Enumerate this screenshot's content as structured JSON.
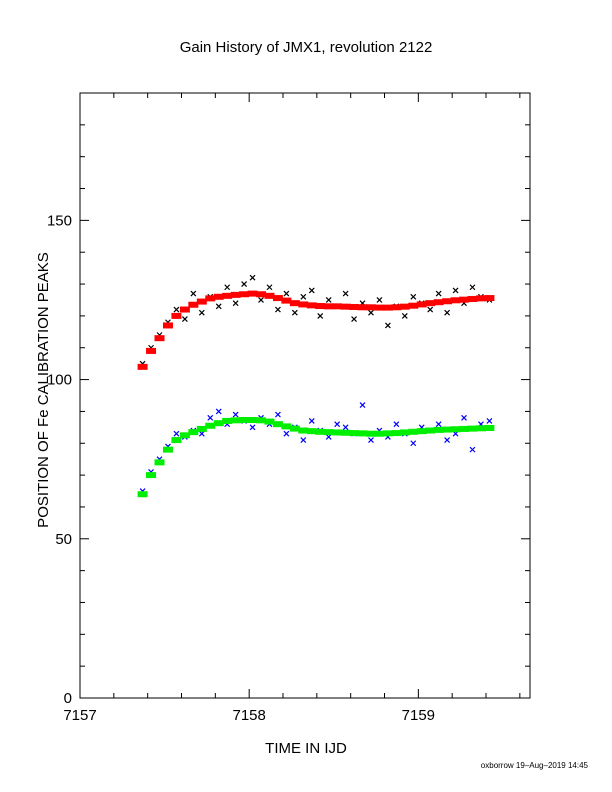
{
  "chart_data": {
    "type": "scatter",
    "title": "Gain History of JMX1, revolution 2122",
    "x_label": "TIME IN IJD",
    "y_label": "POSITION OF Fe CALIBRATION PEAKS",
    "footer": "oxborrow 19–Aug–2019 14:45",
    "xlim": [
      7157,
      7159.66
    ],
    "ylim": [
      0,
      190
    ],
    "xticks": [
      7157,
      7158,
      7159
    ],
    "yticks": [
      0,
      50,
      100,
      150
    ],
    "xminor_ticks": [
      7157.2,
      7157.4,
      7157.6,
      7157.8,
      7158.2,
      7158.4,
      7158.6,
      7158.8,
      7159.2,
      7159.4,
      7159.6
    ],
    "yminor_ticks": [
      10,
      20,
      30,
      40,
      60,
      70,
      80,
      90,
      110,
      120,
      130,
      140,
      160,
      170,
      180
    ],
    "x": [
      7157.37,
      7157.42,
      7157.47,
      7157.52,
      7157.57,
      7157.62,
      7157.67,
      7157.72,
      7157.77,
      7157.82,
      7157.87,
      7157.92,
      7157.97,
      7158.02,
      7158.07,
      7158.12,
      7158.17,
      7158.22,
      7158.27,
      7158.32,
      7158.37,
      7158.42,
      7158.47,
      7158.52,
      7158.57,
      7158.62,
      7158.67,
      7158.72,
      7158.77,
      7158.82,
      7158.87,
      7158.92,
      7158.97,
      7159.02,
      7159.07,
      7159.12,
      7159.17,
      7159.22,
      7159.27,
      7159.32,
      7159.37,
      7159.42
    ],
    "series": [
      {
        "color": "#000000",
        "marker": "x",
        "values": [
          105,
          110,
          114,
          118,
          122,
          119,
          127,
          121,
          126,
          123,
          129,
          124,
          130,
          132,
          125,
          129,
          122,
          127,
          121,
          126,
          128,
          120,
          125,
          123,
          127,
          119,
          124,
          121,
          125,
          117,
          123,
          120,
          126,
          124,
          122,
          127,
          121,
          128,
          124,
          129,
          126,
          125
        ]
      },
      {
        "color": "#ff0000",
        "marker": "square",
        "values": [
          104,
          109,
          113,
          117,
          120,
          122,
          123.5,
          124.5,
          125.5,
          126,
          126.3,
          126.6,
          126.8,
          127,
          126.8,
          126.3,
          125.6,
          124.8,
          124,
          123.6,
          123.3,
          123.1,
          123,
          123,
          122.9,
          122.8,
          122.7,
          122.7,
          122.6,
          122.6,
          122.7,
          122.9,
          123.2,
          123.6,
          124,
          124.3,
          124.6,
          124.9,
          125.1,
          125.3,
          125.5,
          125.6
        ]
      },
      {
        "color": "#0000ff",
        "marker": "x",
        "values": [
          65,
          71,
          75,
          79,
          83,
          82,
          84,
          83,
          88,
          90,
          86,
          89,
          87,
          85,
          88,
          86,
          89,
          83,
          85,
          81,
          87,
          84,
          82,
          86,
          85,
          83,
          92,
          81,
          84,
          82,
          86,
          83,
          80,
          85,
          84,
          86,
          81,
          83,
          88,
          78,
          86,
          87
        ]
      },
      {
        "color": "#00ee00",
        "marker": "square",
        "values": [
          64,
          70,
          74,
          78,
          81,
          82.5,
          83.5,
          84.5,
          85.5,
          86.3,
          87,
          87.2,
          87.3,
          87.3,
          87.2,
          86.8,
          86,
          85.3,
          84.6,
          84,
          83.8,
          83.6,
          83.5,
          83.4,
          83.3,
          83.2,
          83.1,
          83,
          83,
          83.1,
          83.2,
          83.4,
          83.6,
          83.8,
          84,
          84.2,
          84.3,
          84.4,
          84.5,
          84.6,
          84.7,
          84.8
        ]
      }
    ]
  }
}
